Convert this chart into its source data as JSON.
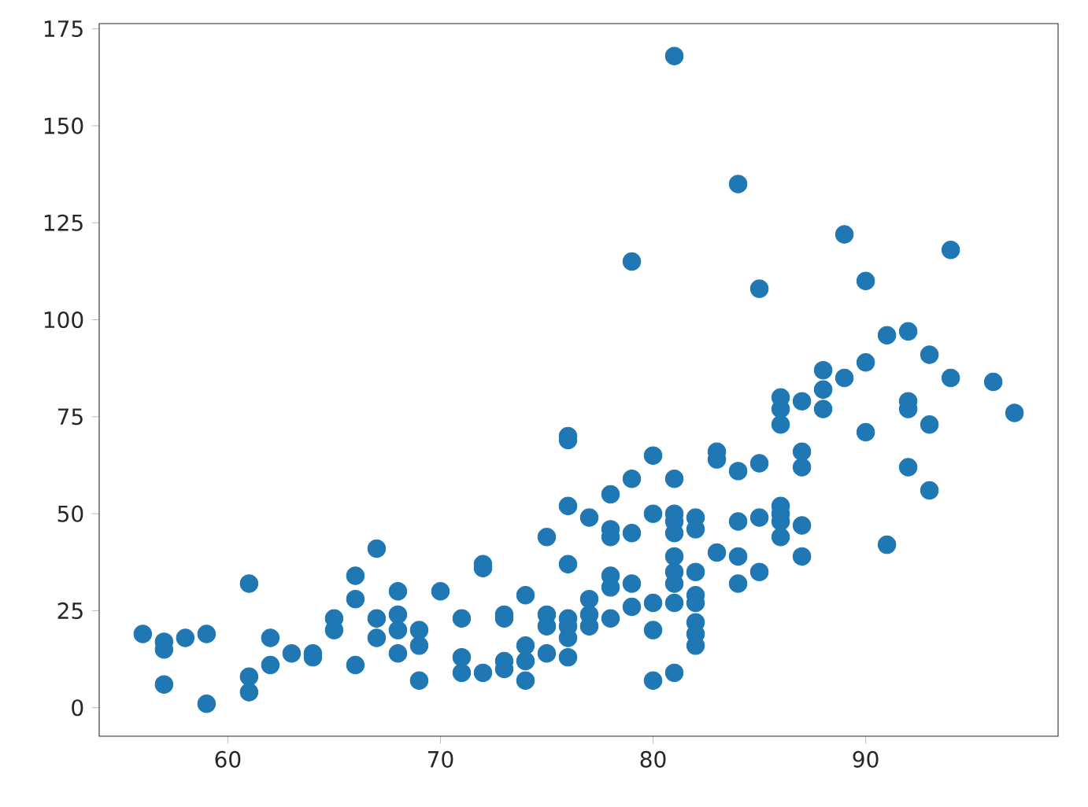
{
  "chart_data": {
    "type": "scatter",
    "x": [
      56,
      57,
      57,
      57,
      58,
      59,
      59,
      61,
      61,
      61,
      62,
      62,
      63,
      64,
      64,
      65,
      65,
      66,
      66,
      66,
      67,
      67,
      67,
      68,
      68,
      68,
      68,
      69,
      69,
      69,
      70,
      71,
      71,
      71,
      72,
      72,
      72,
      73,
      73,
      73,
      73,
      74,
      74,
      74,
      74,
      75,
      75,
      75,
      75,
      76,
      76,
      76,
      76,
      76,
      76,
      76,
      76,
      77,
      77,
      77,
      77,
      78,
      78,
      78,
      78,
      78,
      78,
      79,
      79,
      79,
      79,
      79,
      80,
      80,
      80,
      80,
      80,
      81,
      81,
      81,
      81,
      81,
      81,
      81,
      81,
      81,
      81,
      82,
      82,
      82,
      82,
      82,
      82,
      82,
      82,
      83,
      83,
      83,
      84,
      84,
      84,
      84,
      84,
      85,
      85,
      85,
      85,
      86,
      86,
      86,
      86,
      86,
      86,
      86,
      87,
      87,
      87,
      87,
      87,
      88,
      88,
      88,
      89,
      89,
      90,
      90,
      90,
      91,
      91,
      92,
      92,
      92,
      92,
      93,
      93,
      93,
      94,
      94,
      96,
      97
    ],
    "values": [
      19,
      17,
      15,
      6,
      18,
      19,
      1,
      32,
      8,
      4,
      18,
      11,
      14,
      14,
      13,
      23,
      20,
      34,
      28,
      11,
      41,
      23,
      18,
      30,
      24,
      20,
      14,
      20,
      16,
      7,
      30,
      23,
      13,
      9,
      37,
      36,
      9,
      24,
      23,
      12,
      10,
      29,
      16,
      12,
      7,
      44,
      24,
      21,
      14,
      70,
      69,
      52,
      37,
      23,
      21,
      18,
      13,
      49,
      28,
      24,
      21,
      55,
      46,
      44,
      34,
      31,
      23,
      115,
      59,
      45,
      32,
      26,
      65,
      50,
      27,
      20,
      7,
      168,
      59,
      50,
      48,
      45,
      39,
      35,
      32,
      27,
      9,
      49,
      46,
      35,
      29,
      27,
      22,
      19,
      16,
      66,
      64,
      40,
      135,
      61,
      48,
      39,
      32,
      108,
      63,
      49,
      35,
      80,
      77,
      73,
      52,
      50,
      48,
      44,
      79,
      66,
      62,
      47,
      39,
      87,
      82,
      77,
      122,
      85,
      110,
      89,
      71,
      96,
      42,
      97,
      79,
      77,
      62,
      91,
      73,
      56,
      118,
      85,
      84,
      76
    ],
    "color": "#1f77b4",
    "xlim": [
      53.95,
      99.05
    ],
    "ylim": [
      -7.35,
      176.35
    ],
    "xticks": [
      60,
      70,
      80,
      90
    ],
    "yticks": [
      0,
      25,
      50,
      75,
      100,
      125,
      150,
      175
    ]
  }
}
